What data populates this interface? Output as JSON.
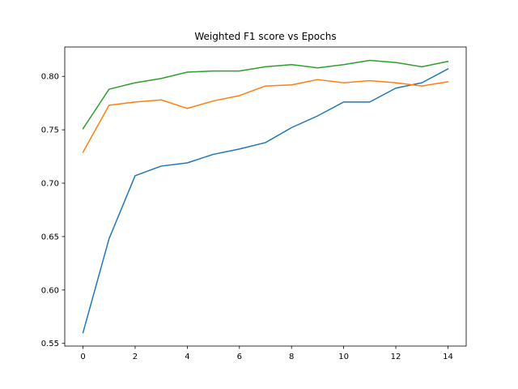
{
  "chart_data": {
    "type": "line",
    "title": "Weighted F1 score vs Epochs",
    "xlabel": "",
    "ylabel": "",
    "xlim": [
      -0.7,
      14.7
    ],
    "ylim": [
      0.5475,
      0.8275
    ],
    "grid": false,
    "legend": "none",
    "x": [
      0,
      1,
      2,
      3,
      4,
      5,
      6,
      7,
      8,
      9,
      10,
      11,
      12,
      13,
      14
    ],
    "x_ticks": [
      0,
      2,
      4,
      6,
      8,
      10,
      12,
      14
    ],
    "y_ticks": [
      0.55,
      0.6,
      0.65,
      0.7,
      0.75,
      0.8
    ],
    "y_tick_labels": [
      "0.55",
      "0.60",
      "0.65",
      "0.70",
      "0.75",
      "0.80"
    ],
    "series": [
      {
        "color": "#1f77b4",
        "values": [
          0.56,
          0.648,
          0.707,
          0.716,
          0.719,
          0.727,
          0.732,
          0.738,
          0.752,
          0.763,
          0.776,
          0.776,
          0.789,
          0.794,
          0.807
        ]
      },
      {
        "color": "#ff7f0e",
        "values": [
          0.729,
          0.773,
          0.776,
          0.778,
          0.77,
          0.777,
          0.782,
          0.791,
          0.792,
          0.797,
          0.794,
          0.796,
          0.794,
          0.791,
          0.795
        ]
      },
      {
        "color": "#2ca02c",
        "values": [
          0.751,
          0.788,
          0.794,
          0.798,
          0.804,
          0.805,
          0.805,
          0.809,
          0.811,
          0.808,
          0.811,
          0.815,
          0.813,
          0.809,
          0.814
        ]
      }
    ]
  }
}
